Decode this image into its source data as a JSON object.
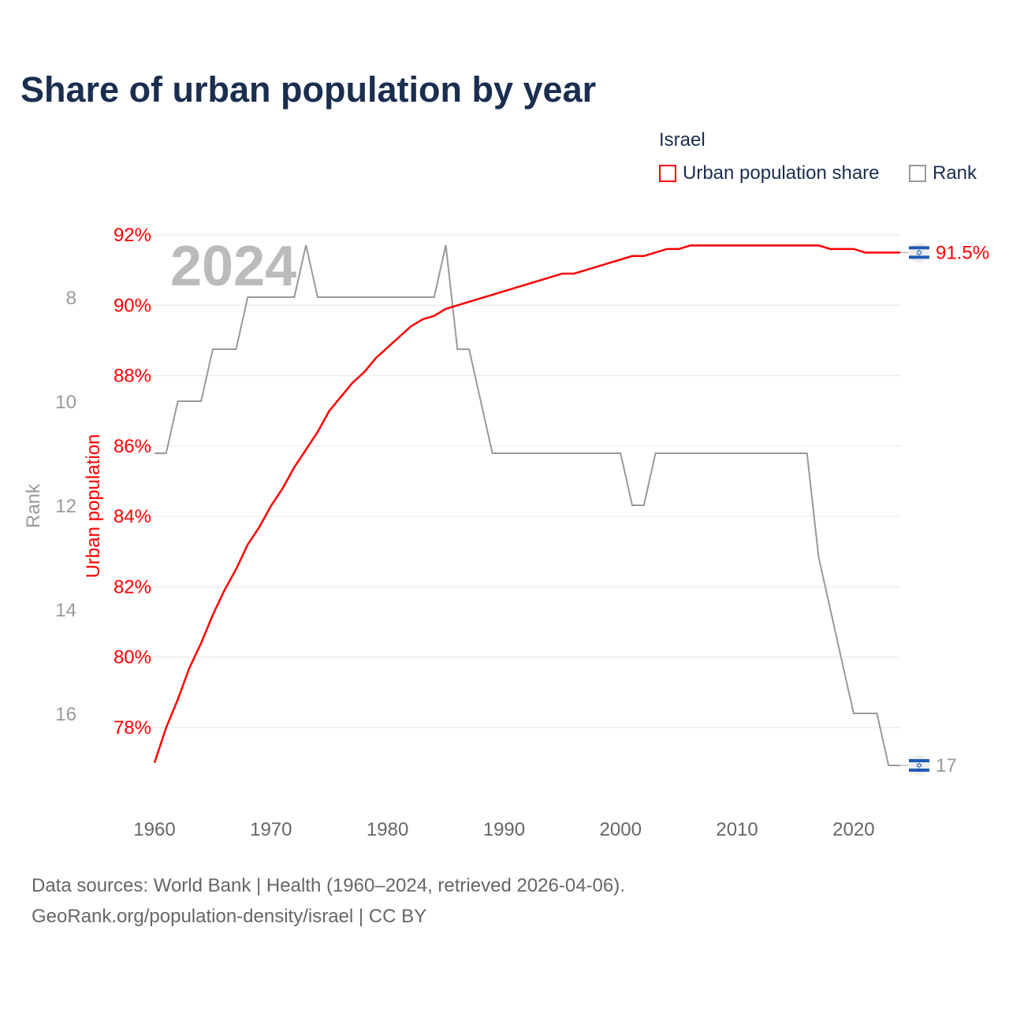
{
  "chart_data": {
    "type": "line",
    "title": "Share of urban population by year",
    "legend_title": "Israel",
    "legend": [
      "Urban population share",
      "Rank"
    ],
    "legend_placement": "top-right",
    "year_watermark": "2024",
    "x": [
      1960,
      1961,
      1962,
      1963,
      1964,
      1965,
      1966,
      1967,
      1968,
      1969,
      1970,
      1971,
      1972,
      1973,
      1974,
      1975,
      1976,
      1977,
      1978,
      1979,
      1980,
      1981,
      1982,
      1983,
      1984,
      1985,
      1986,
      1987,
      1988,
      1989,
      1990,
      1991,
      1992,
      1993,
      1994,
      1995,
      1996,
      1997,
      1998,
      1999,
      2000,
      2001,
      2002,
      2003,
      2004,
      2005,
      2006,
      2007,
      2008,
      2009,
      2010,
      2011,
      2012,
      2013,
      2014,
      2015,
      2016,
      2017,
      2018,
      2019,
      2020,
      2021,
      2022,
      2023,
      2024
    ],
    "xlim": [
      1960,
      2024
    ],
    "x_ticks": [
      "1960",
      "1970",
      "1980",
      "1990",
      "2000",
      "2010",
      "2020"
    ],
    "series": [
      {
        "name": "Urban population share",
        "axis": "left",
        "color": "#ff0000",
        "values": [
          77.0,
          78.0,
          78.8,
          79.7,
          80.4,
          81.2,
          81.9,
          82.5,
          83.2,
          83.7,
          84.3,
          84.8,
          85.4,
          85.9,
          86.4,
          87.0,
          87.4,
          87.8,
          88.1,
          88.5,
          88.8,
          89.1,
          89.4,
          89.6,
          89.7,
          89.9,
          90.0,
          90.1,
          90.2,
          90.3,
          90.4,
          90.5,
          90.6,
          90.7,
          90.8,
          90.9,
          90.9,
          91.0,
          91.1,
          91.2,
          91.3,
          91.4,
          91.4,
          91.5,
          91.6,
          91.6,
          91.7,
          91.7,
          91.7,
          91.7,
          91.7,
          91.7,
          91.7,
          91.7,
          91.7,
          91.7,
          91.7,
          91.7,
          91.6,
          91.6,
          91.6,
          91.5,
          91.5,
          91.5,
          91.5
        ]
      },
      {
        "name": "Rank",
        "axis": "right-inverted",
        "color": "#999999",
        "values": [
          11,
          11,
          10,
          10,
          10,
          9,
          9,
          9,
          8,
          8,
          8,
          8,
          8,
          7,
          8,
          8,
          8,
          8,
          8,
          8,
          8,
          8,
          8,
          8,
          8,
          7,
          9,
          9,
          10,
          11,
          11,
          11,
          11,
          11,
          11,
          11,
          11,
          11,
          11,
          11,
          11,
          12,
          12,
          11,
          11,
          11,
          11,
          11,
          11,
          11,
          11,
          11,
          11,
          11,
          11,
          11,
          11,
          13,
          14,
          15,
          16,
          16,
          16,
          17,
          17
        ]
      }
    ],
    "ylabel_left": "Urban population",
    "ylim_left": [
      76.8,
      92
    ],
    "y_ticks_left": [
      "78%",
      "80%",
      "82%",
      "84%",
      "86%",
      "88%",
      "90%",
      "92%"
    ],
    "ylabel_rank": "Rank",
    "ylim_rank": [
      7,
      17
    ],
    "y_ticks_rank": [
      "8",
      "10",
      "12",
      "14",
      "16"
    ],
    "end_labels": {
      "urban": "91.5%",
      "rank": "17"
    },
    "grid": true
  },
  "footer": {
    "source": "Data sources: World Bank | Health (1960–2024, retrieved 2026-04-06).",
    "credit": "GeoRank.org/population-density/israel | CC BY"
  }
}
